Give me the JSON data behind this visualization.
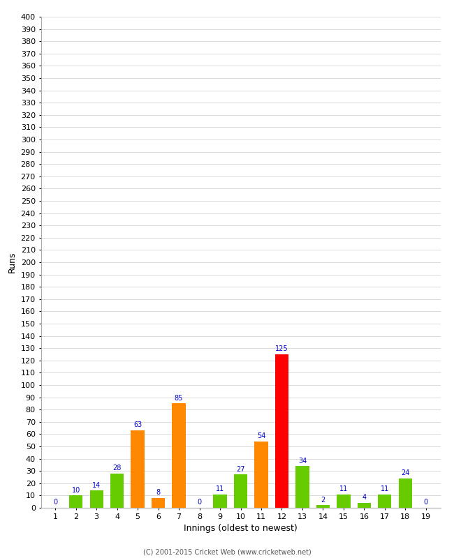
{
  "xlabel": "Innings (oldest to newest)",
  "ylabel": "Runs",
  "innings": [
    1,
    2,
    3,
    4,
    5,
    6,
    7,
    8,
    9,
    10,
    11,
    12,
    13,
    14,
    15,
    16,
    17,
    18,
    19
  ],
  "values": [
    0,
    10,
    14,
    28,
    63,
    8,
    85,
    0,
    11,
    27,
    54,
    125,
    34,
    2,
    11,
    4,
    11,
    24,
    0
  ],
  "colors": [
    "#66cc00",
    "#66cc00",
    "#66cc00",
    "#66cc00",
    "#ff8800",
    "#ff8800",
    "#ff8800",
    "#66cc00",
    "#66cc00",
    "#66cc00",
    "#ff8800",
    "#ff0000",
    "#66cc00",
    "#66cc00",
    "#66cc00",
    "#66cc00",
    "#66cc00",
    "#66cc00",
    "#66cc00"
  ],
  "ylim": [
    0,
    400
  ],
  "label_color": "#0000cc",
  "background_color": "#ffffff",
  "grid_color": "#cccccc",
  "footer": "(C) 2001-2015 Cricket Web (www.cricketweb.net)",
  "bar_width": 0.65,
  "label_fontsize": 7,
  "axis_label_fontsize": 9,
  "tick_fontsize": 8,
  "footer_fontsize": 7
}
